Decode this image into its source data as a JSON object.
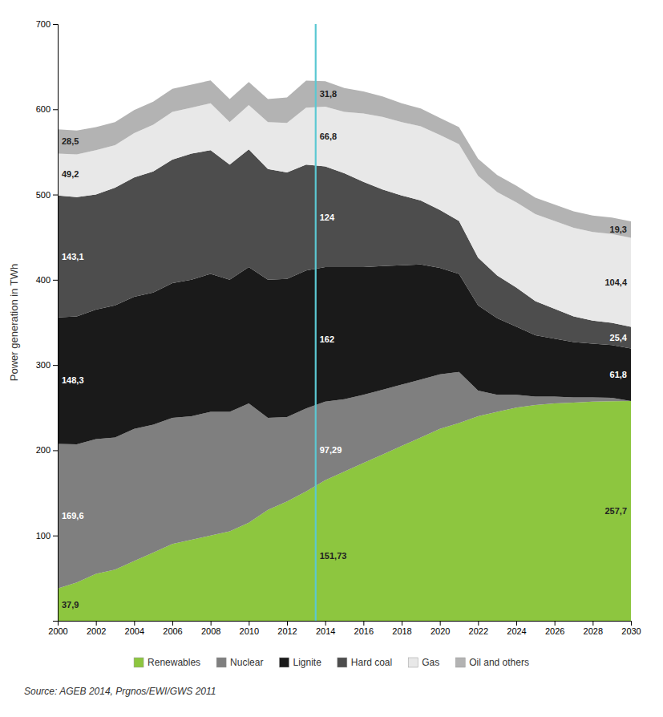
{
  "chart_data": {
    "type": "area",
    "stacked": true,
    "ylabel": "Power generation in TWh",
    "source": "Source: AGEB 2014, Prgnos/EWI/GWS 2011",
    "x": [
      2000,
      2001,
      2002,
      2003,
      2004,
      2005,
      2006,
      2007,
      2008,
      2009,
      2010,
      2011,
      2012,
      2013,
      2014,
      2015,
      2016,
      2017,
      2018,
      2019,
      2020,
      2021,
      2022,
      2023,
      2024,
      2025,
      2026,
      2027,
      2028,
      2029,
      2030
    ],
    "xlim": [
      2000,
      2030
    ],
    "xticks": [
      2000,
      2002,
      2004,
      2006,
      2008,
      2010,
      2012,
      2014,
      2016,
      2018,
      2020,
      2022,
      2024,
      2026,
      2028,
      2030
    ],
    "ylim": [
      0,
      700
    ],
    "yticks": [
      100,
      200,
      300,
      400,
      500,
      600,
      700
    ],
    "grid": false,
    "legend": "bottom",
    "data_labels": true,
    "vlines": [
      {
        "x": 2013.5,
        "color": "#5bc8d2"
      }
    ],
    "series": [
      {
        "name": "Renewables",
        "color": "#8dc63f",
        "values": [
          37.9,
          45,
          55,
          60,
          70,
          80,
          90,
          95,
          100,
          105,
          115,
          130,
          140,
          151.73,
          165,
          175,
          185,
          195,
          205,
          215,
          225,
          232,
          240,
          245,
          250,
          253,
          255,
          256,
          257,
          257.5,
          257.7
        ],
        "value_labels": [
          "37,9",
          null,
          null,
          null,
          null,
          null,
          null,
          null,
          null,
          null,
          null,
          null,
          null,
          "151,73",
          null,
          null,
          null,
          null,
          null,
          null,
          null,
          null,
          null,
          null,
          null,
          null,
          null,
          null,
          null,
          null,
          "257,7"
        ]
      },
      {
        "name": "Nuclear",
        "color": "#7f7f7f",
        "values": [
          169.6,
          162,
          158,
          155,
          155,
          150,
          148,
          145,
          145,
          140,
          140,
          108,
          99,
          97.29,
          92,
          85,
          80,
          76,
          72,
          68,
          64,
          60,
          30,
          20,
          15,
          10,
          8,
          6,
          5,
          4,
          0
        ],
        "value_labels": [
          "169,6",
          null,
          null,
          null,
          null,
          null,
          null,
          null,
          null,
          null,
          null,
          null,
          null,
          "97,29",
          null,
          null,
          null,
          null,
          null,
          null,
          null,
          null,
          null,
          null,
          null,
          null,
          null,
          null,
          null,
          null,
          null
        ]
      },
      {
        "name": "Lignite",
        "color": "#1a1a1a",
        "values": [
          148.3,
          150,
          152,
          155,
          155,
          155,
          158,
          160,
          162,
          155,
          160,
          162,
          162,
          162,
          158,
          155,
          150,
          145,
          140,
          135,
          125,
          115,
          100,
          90,
          80,
          72,
          68,
          65,
          63,
          62,
          61.8
        ],
        "value_labels": [
          "148,3",
          null,
          null,
          null,
          null,
          null,
          null,
          null,
          null,
          null,
          null,
          null,
          null,
          "162",
          null,
          null,
          null,
          null,
          null,
          null,
          null,
          null,
          null,
          null,
          null,
          null,
          null,
          null,
          null,
          null,
          "61,8"
        ]
      },
      {
        "name": "Hard coal",
        "color": "#4d4d4d",
        "values": [
          143.1,
          140,
          135,
          138,
          140,
          142,
          145,
          148,
          145,
          135,
          138,
          130,
          125,
          124,
          118,
          110,
          100,
          90,
          82,
          75,
          68,
          62,
          56,
          50,
          46,
          40,
          35,
          30,
          27,
          26,
          25.4
        ],
        "value_labels": [
          "143,1",
          null,
          null,
          null,
          null,
          null,
          null,
          null,
          null,
          null,
          null,
          null,
          null,
          "124",
          null,
          null,
          null,
          null,
          null,
          null,
          null,
          null,
          null,
          null,
          null,
          null,
          null,
          null,
          null,
          null,
          "25,4"
        ]
      },
      {
        "name": "Gas",
        "color": "#e8e8e8",
        "values": [
          49.2,
          50,
          52,
          50,
          52,
          55,
          56,
          54,
          55,
          50,
          52,
          55,
          58,
          66.8,
          70,
          72,
          80,
          85,
          86,
          87,
          88,
          90,
          96,
          98,
          100,
          102,
          103,
          104,
          104,
          104.2,
          104.4
        ],
        "value_labels": [
          "49,2",
          null,
          null,
          null,
          null,
          null,
          null,
          null,
          null,
          null,
          null,
          null,
          null,
          "66,8",
          null,
          null,
          null,
          null,
          null,
          null,
          null,
          null,
          null,
          null,
          null,
          null,
          null,
          null,
          null,
          null,
          "104,4"
        ]
      },
      {
        "name": "Oil and others",
        "color": "#b3b3b3",
        "values": [
          28.5,
          28,
          27,
          27,
          27,
          27,
          27,
          27,
          27,
          27,
          27,
          27,
          30,
          31.8,
          30,
          28,
          26,
          24,
          22,
          21,
          20,
          20,
          20,
          20,
          19.5,
          19.4,
          19.3,
          19.3,
          19.3,
          19.3,
          19.3
        ],
        "value_labels": [
          "28,5",
          null,
          null,
          null,
          null,
          null,
          null,
          null,
          null,
          null,
          null,
          null,
          null,
          "31,8",
          null,
          null,
          null,
          null,
          null,
          null,
          null,
          null,
          null,
          null,
          null,
          null,
          null,
          null,
          null,
          null,
          "19,3"
        ]
      }
    ]
  }
}
